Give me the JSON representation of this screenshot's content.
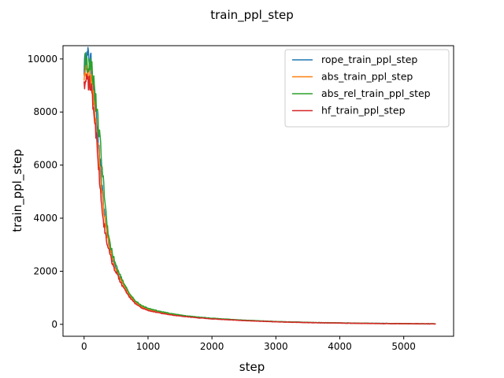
{
  "chart_data": {
    "type": "line",
    "title": "train_ppl_step",
    "xlabel": "step",
    "ylabel": "train_ppl_step",
    "xlim": [
      -330,
      5780
    ],
    "ylim": [
      -450,
      10500
    ],
    "x_ticks": [
      0,
      1000,
      2000,
      3000,
      4000,
      5000
    ],
    "y_ticks": [
      0,
      2000,
      4000,
      6000,
      8000,
      10000
    ],
    "grid": false,
    "legend": "top-right",
    "series": [
      {
        "name": "rope_train_ppl_step",
        "color": "#1f77b4",
        "x": [
          0,
          30,
          60,
          100,
          130,
          160,
          200,
          250,
          300,
          350,
          400,
          450,
          500,
          550,
          600,
          700,
          800,
          900,
          1000,
          1200,
          1400,
          1600,
          1800,
          2000,
          2500,
          3000,
          3500,
          4000,
          4500,
          5000,
          5500
        ],
        "y": [
          9700,
          10000,
          10100,
          9950,
          9500,
          8600,
          7600,
          6000,
          4600,
          3600,
          2900,
          2450,
          2100,
          1850,
          1600,
          1150,
          850,
          680,
          560,
          450,
          370,
          310,
          260,
          220,
          150,
          100,
          70,
          50,
          35,
          25,
          18
        ]
      },
      {
        "name": "abs_train_ppl_step",
        "color": "#ff7f0e",
        "x": [
          0,
          30,
          60,
          100,
          130,
          160,
          200,
          250,
          300,
          350,
          400,
          450,
          500,
          550,
          600,
          700,
          800,
          900,
          1000,
          1200,
          1400,
          1600,
          1800,
          2000,
          2500,
          3000,
          3500,
          4000,
          4500,
          5000,
          5500
        ],
        "y": [
          9450,
          9600,
          9550,
          9300,
          8900,
          8200,
          7200,
          5800,
          4400,
          3500,
          2850,
          2400,
          2050,
          1800,
          1550,
          1120,
          830,
          660,
          550,
          440,
          360,
          300,
          255,
          215,
          145,
          98,
          68,
          48,
          33,
          24,
          17
        ]
      },
      {
        "name": "abs_rel_train_ppl_step",
        "color": "#2ca02c",
        "x": [
          0,
          30,
          60,
          100,
          130,
          160,
          200,
          250,
          300,
          350,
          400,
          450,
          500,
          550,
          600,
          700,
          800,
          900,
          1000,
          1200,
          1400,
          1600,
          1800,
          2000,
          2500,
          3000,
          3500,
          4000,
          4500,
          5000,
          5500
        ],
        "y": [
          9850,
          9950,
          9800,
          9800,
          9600,
          9000,
          8000,
          6900,
          5400,
          4000,
          3100,
          2600,
          2200,
          1900,
          1650,
          1200,
          880,
          710,
          600,
          480,
          390,
          320,
          270,
          230,
          155,
          105,
          72,
          52,
          36,
          26,
          18
        ]
      },
      {
        "name": "hf_train_ppl_step",
        "color": "#d62728",
        "x": [
          0,
          30,
          60,
          100,
          130,
          160,
          200,
          250,
          300,
          350,
          400,
          450,
          500,
          550,
          600,
          700,
          800,
          900,
          1000,
          1200,
          1400,
          1600,
          1800,
          2000,
          2500,
          3000,
          3500,
          4000,
          4500,
          5000,
          5500
        ],
        "y": [
          9100,
          9200,
          9150,
          9000,
          8600,
          7900,
          6800,
          5200,
          3900,
          3200,
          2650,
          2250,
          1950,
          1700,
          1450,
          1050,
          780,
          620,
          520,
          420,
          340,
          285,
          240,
          205,
          140,
          95,
          65,
          46,
          32,
          23,
          16
        ]
      }
    ]
  }
}
